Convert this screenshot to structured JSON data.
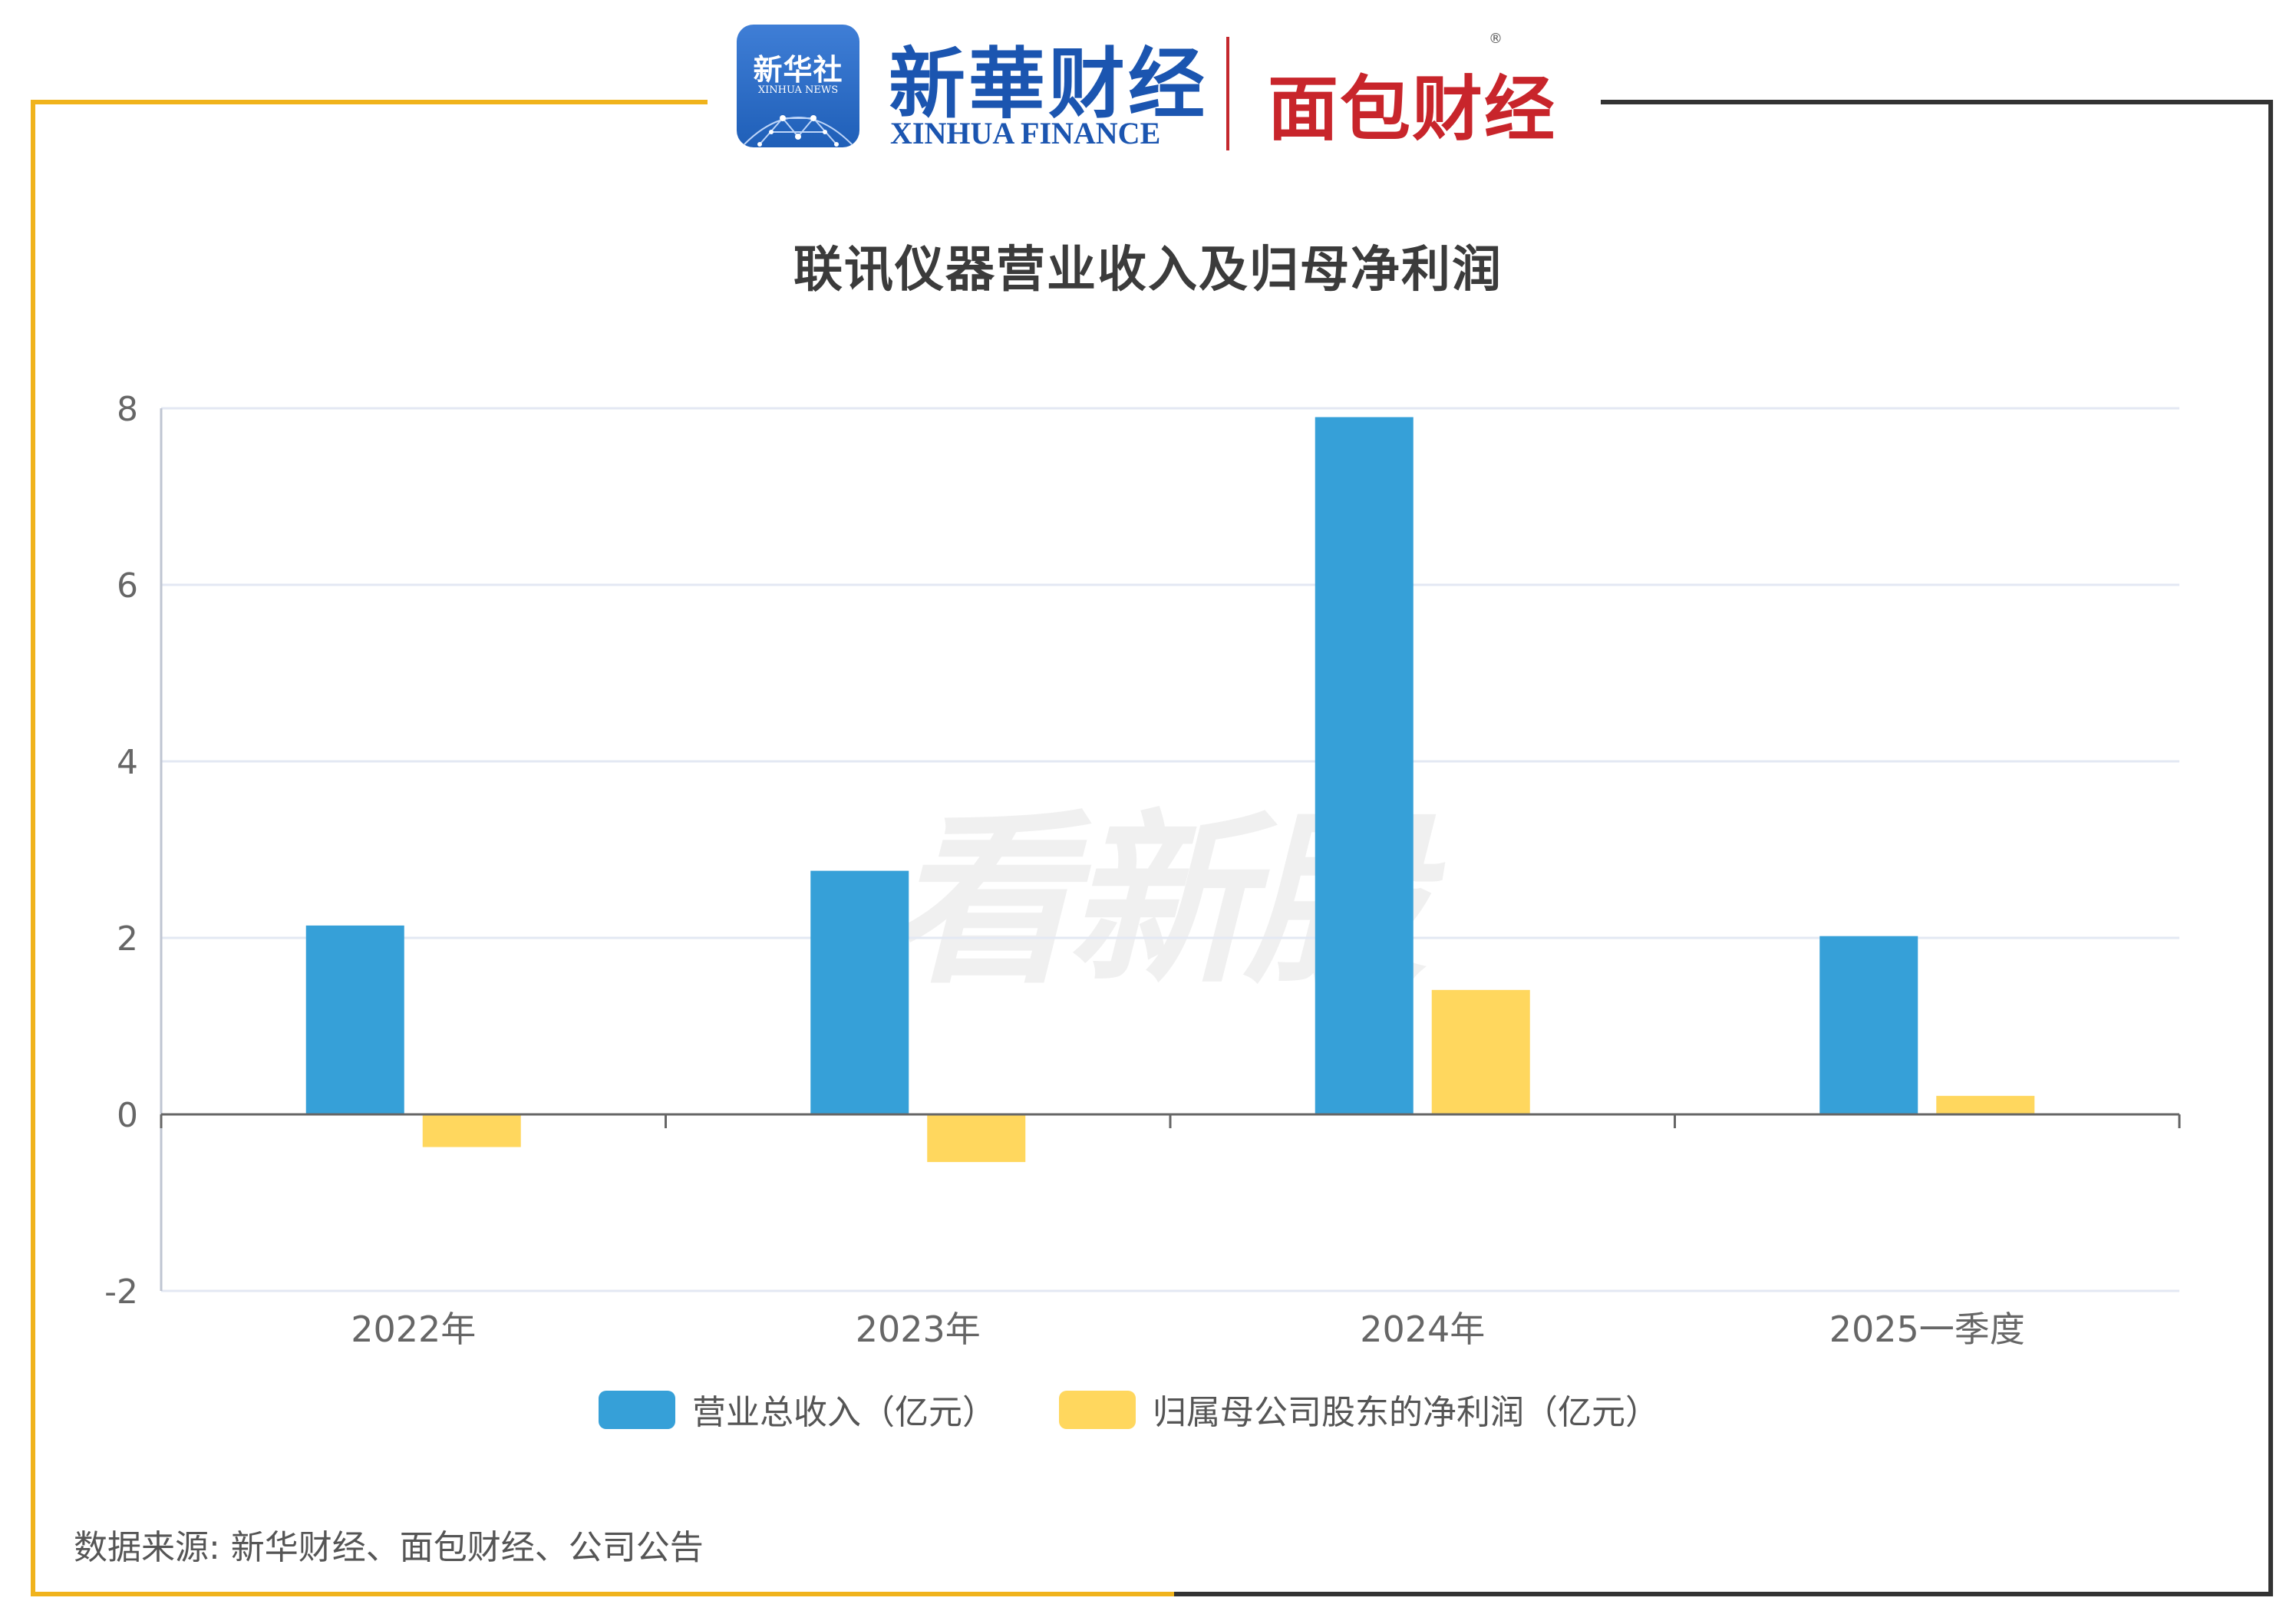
{
  "header": {
    "xinhua_badge_cn": "新华社",
    "xinhua_badge_en": "XINHUA NEWS",
    "xinhua_finance_cn": "新華财经",
    "xinhua_finance_en": "XINHUA FINANCE",
    "mianbao_logo": "面包财经",
    "registered_mark": "®"
  },
  "watermark": "看新股",
  "colors": {
    "frame_left": "#f0b31c",
    "frame_right": "#333333",
    "revenue": "#36a0d8",
    "net_profit": "#ffd75e",
    "grid": "#e3e8f3",
    "axis": "#666666"
  },
  "chart_data": {
    "type": "bar",
    "title": "联讯仪器营业收入及归母净利润",
    "categories": [
      "2022年",
      "2023年",
      "2024年",
      "2025一季度"
    ],
    "series": [
      {
        "name": "营业总收入（亿元）",
        "values": [
          2.14,
          2.76,
          7.9,
          2.02
        ]
      },
      {
        "name": "归属母公司股东的净利润（亿元）",
        "values": [
          -0.37,
          -0.54,
          1.41,
          0.21
        ]
      }
    ],
    "ylim": [
      -2,
      8
    ],
    "yticks": [
      -2,
      0,
      2,
      4,
      6,
      8
    ],
    "grid": true,
    "legend_position": "bottom"
  },
  "source_note": "数据来源: 新华财经、面包财经、公司公告"
}
